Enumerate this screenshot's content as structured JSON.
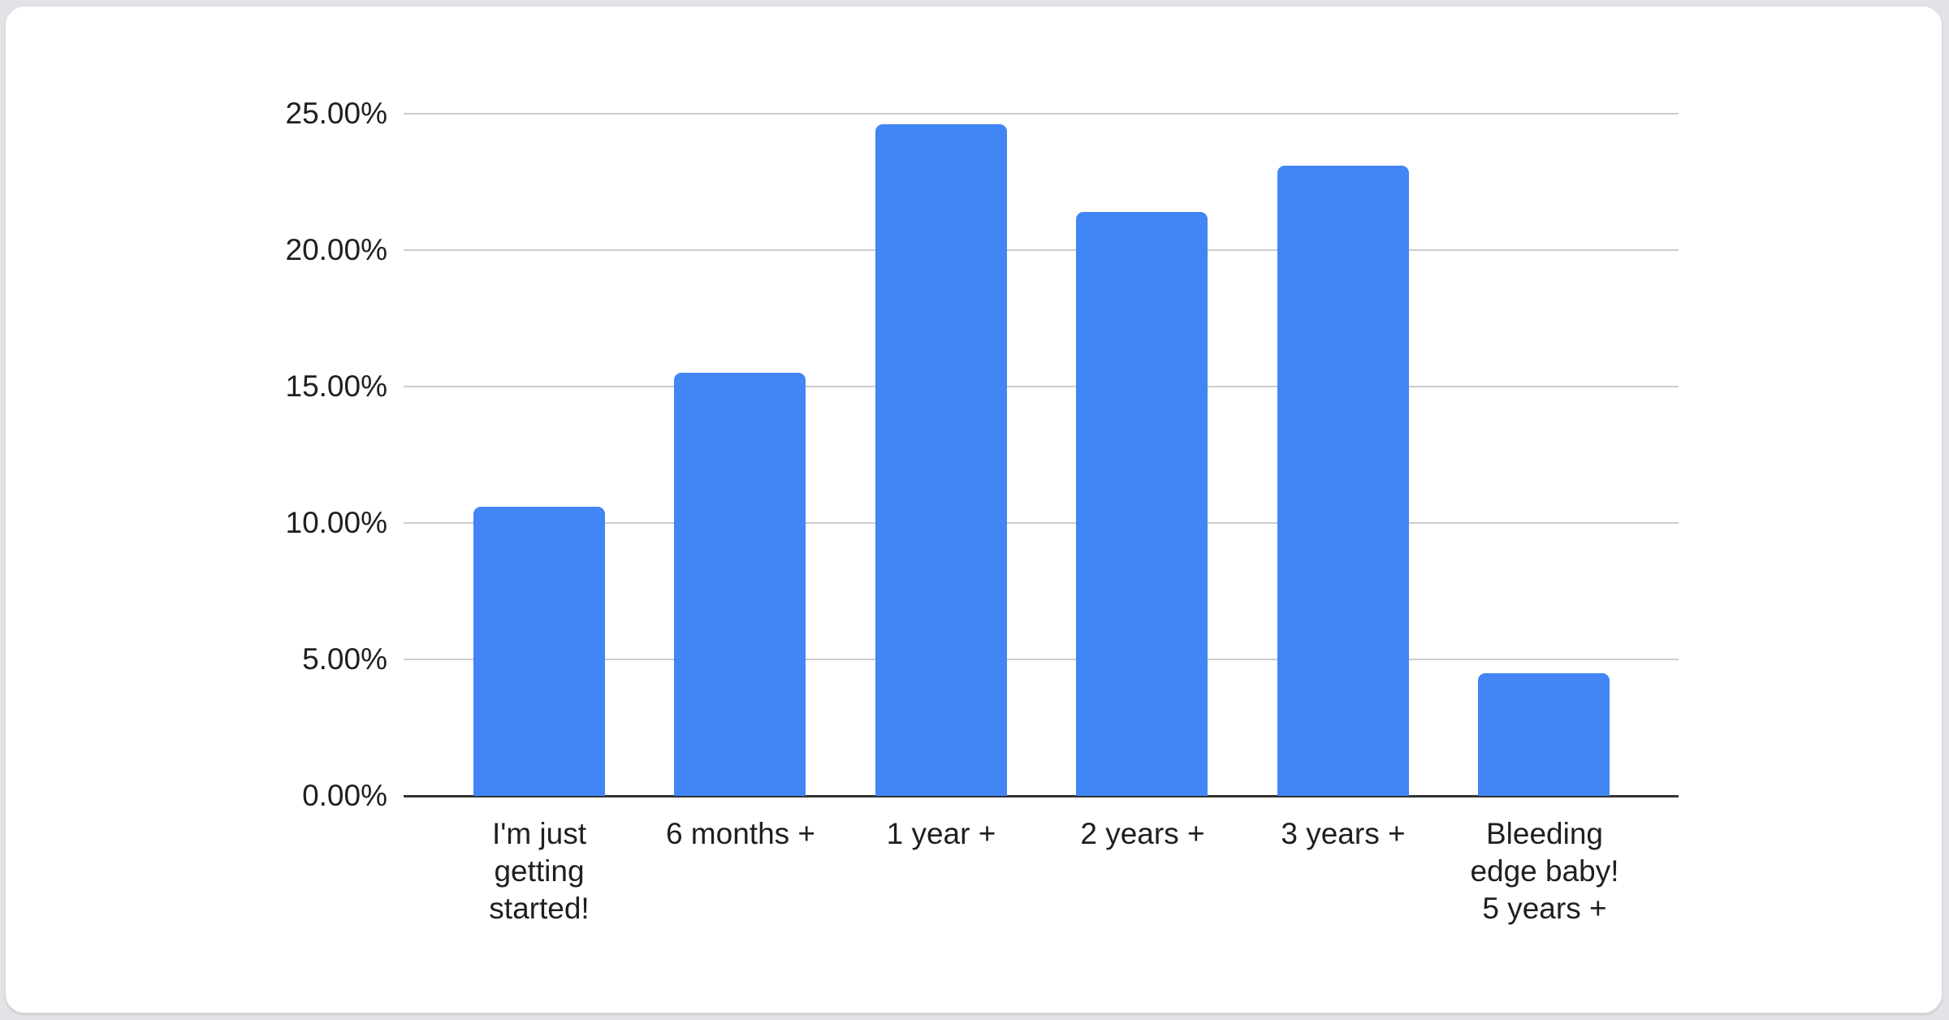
{
  "background_color": "#e1e3e6",
  "card_color": "#ffffff",
  "chart_data": {
    "type": "bar",
    "title": "",
    "xlabel": "",
    "ylabel": "",
    "categories": [
      "I'm just getting started!",
      "6 months +",
      "1 year +",
      "2 years +",
      "3 years +",
      "Bleeding edge baby! 5 years +"
    ],
    "category_lines": [
      [
        "I'm just",
        "getting",
        "started!"
      ],
      [
        "6 months +"
      ],
      [
        "1 year +"
      ],
      [
        "2 years +"
      ],
      [
        "3 years +"
      ],
      [
        "Bleeding",
        "edge baby!",
        "5 years +"
      ]
    ],
    "values": [
      10.6,
      15.5,
      24.6,
      21.4,
      23.1,
      4.5
    ],
    "value_unit": "%",
    "y_ticks": [
      "0.00%",
      "5.00%",
      "10.00%",
      "15.00%",
      "20.00%",
      "25.00%"
    ],
    "y_tick_values": [
      0,
      5,
      10,
      15,
      20,
      25
    ],
    "ylim": [
      0,
      25
    ],
    "grid": true,
    "legend": "none",
    "bar_color": "#4285f4",
    "gridline_color": "#cccccc",
    "axis_line_color": "#333333",
    "label_color": "#1f1f1f"
  }
}
